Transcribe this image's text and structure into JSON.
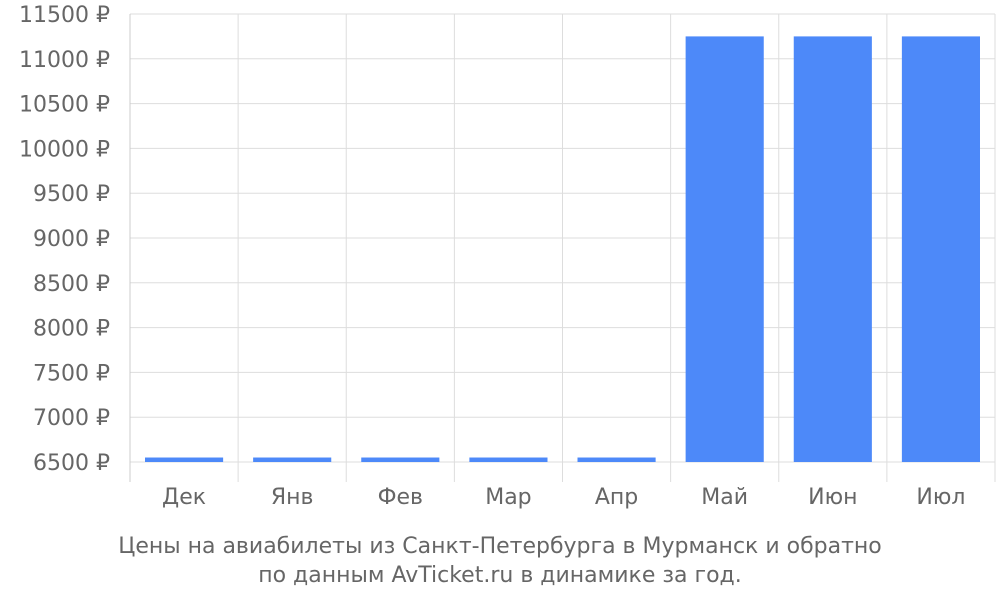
{
  "chart_data": {
    "type": "bar",
    "categories": [
      "Дек",
      "Янв",
      "Фев",
      "Мар",
      "Апр",
      "Май",
      "Июн",
      "Июл"
    ],
    "values": [
      6550,
      6550,
      6550,
      6550,
      6550,
      11250,
      11250,
      11250
    ],
    "ylim": [
      6500,
      11500
    ],
    "yticks": [
      6500,
      7000,
      7500,
      8000,
      8500,
      9000,
      9500,
      10000,
      10500,
      11000,
      11500
    ],
    "y_tick_suffix": " ₽",
    "grid": true,
    "bar_color": "#4d89f9",
    "grid_color": "#dddddd",
    "text_color": "#666666"
  },
  "caption": {
    "line1": "Цены на авиабилеты из Санкт-Петербурга в Мурманск и обратно",
    "line2": "по данным AvTicket.ru в динамике за год."
  }
}
